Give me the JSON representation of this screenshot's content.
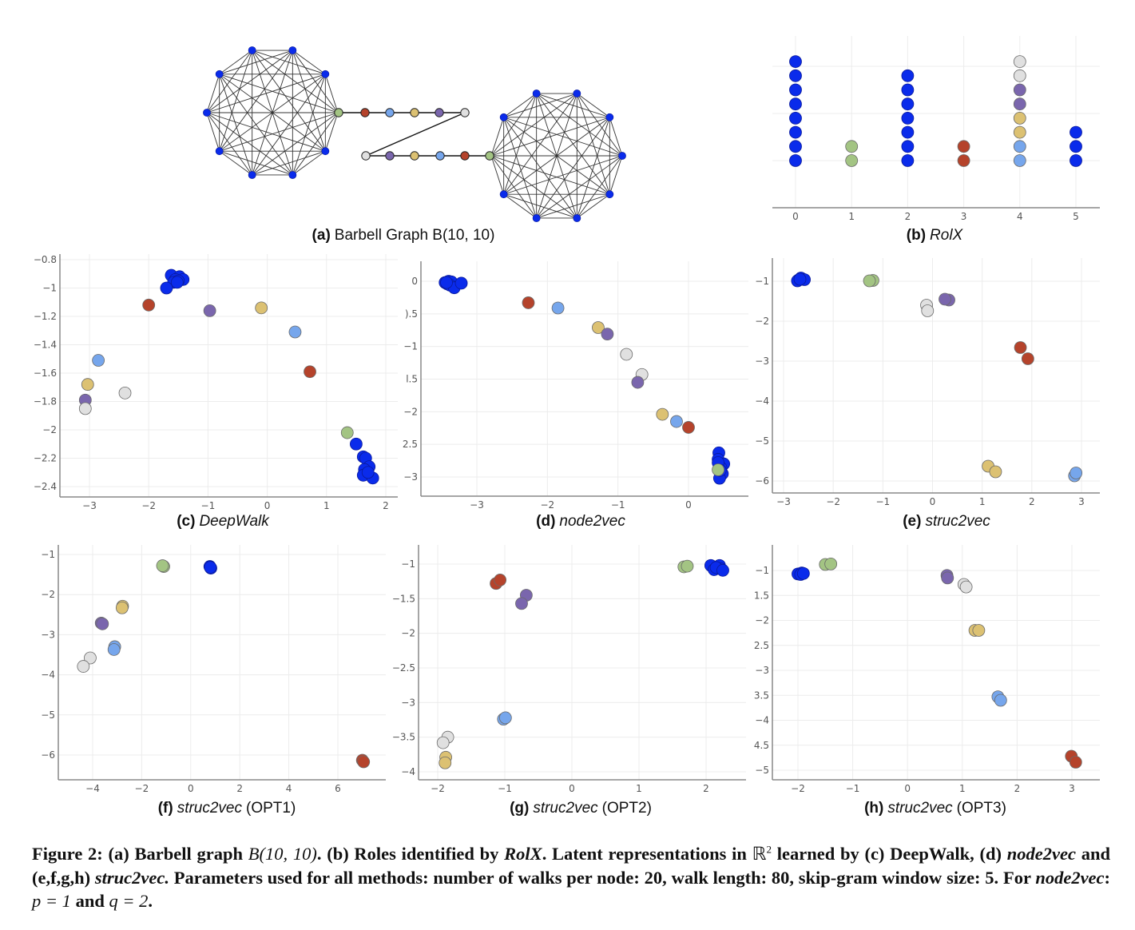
{
  "colors": {
    "blue": "#0A2BEB",
    "green": "#A3C483",
    "red": "#B5432B",
    "lightblue": "#76A6EC",
    "yellow": "#DCC172",
    "purple": "#7A66AD",
    "gray": "#E0E0E0"
  },
  "panel_a": {
    "label_letter": "(a)",
    "label_text": "Barbell Graph B(10, 10)",
    "clique_size": 10,
    "path_left_to_right_top": [
      "green",
      "red",
      "lightblue",
      "yellow",
      "purple",
      "gray"
    ],
    "path_left_to_right_bottom": [
      "gray",
      "purple",
      "yellow",
      "lightblue",
      "red",
      "green"
    ]
  },
  "caption": {
    "figure_label": "Figure 2:",
    "part1": "(a) Barbell graph",
    "math1": "B(10, 10)",
    "part2": ".  (b) Roles identified by",
    "rolx": "RolX",
    "part3": ". Latent representations in",
    "reals": "ℝ",
    "sup": "2",
    "part4": "learned by (c) DeepWalk, (d)",
    "n2v1": "node2vec",
    "part5": "and (e,f,g,h)",
    "s2v": "struc2vec.",
    "part6": "Parameters used for all methods: number of walks per node: 20, walk length: 80, skip-gram window size: 5. For",
    "n2v2": "node2vec",
    "part7": ":",
    "p_expr": "p = 1",
    "and": "and",
    "q_expr": "q = 2",
    "end": "."
  },
  "chart_data": [
    {
      "id": "b",
      "type": "scatter",
      "title_letter": "(b)",
      "title": "RolX",
      "subtype": "stacked-dot",
      "x_ticks": [
        "0",
        "1",
        "2",
        "3",
        "4",
        "5"
      ],
      "stacks": [
        {
          "x": 0,
          "colors": [
            "blue",
            "blue",
            "blue",
            "blue",
            "blue",
            "blue",
            "blue",
            "blue"
          ]
        },
        {
          "x": 1,
          "colors": [
            "green",
            "green"
          ]
        },
        {
          "x": 2,
          "colors": [
            "blue",
            "blue",
            "blue",
            "blue",
            "blue",
            "blue",
            "blue"
          ]
        },
        {
          "x": 3,
          "colors": [
            "red",
            "red"
          ]
        },
        {
          "x": 4,
          "colors": [
            "lightblue",
            "lightblue",
            "yellow",
            "yellow",
            "purple",
            "purple",
            "gray",
            "gray"
          ]
        },
        {
          "x": 5,
          "colors": [
            "blue",
            "blue",
            "blue"
          ]
        }
      ],
      "grid": true
    },
    {
      "id": "c",
      "type": "scatter",
      "title_letter": "(c)",
      "title": "DeepWalk",
      "title_suffix": "",
      "xlim": [
        -3.5,
        2.2
      ],
      "ylim": [
        -2.47,
        -0.8
      ],
      "x_ticks": [
        -3,
        -2,
        -1,
        0,
        1,
        2
      ],
      "y_ticks": [
        -0.8,
        -1,
        -1.2,
        -1.4,
        -1.6,
        -1.8,
        -2,
        -2.2,
        -2.4
      ],
      "y_tick_labels": [
        "−0.8",
        "−1",
        "−1.2",
        "−1.4",
        "−1.6",
        "−1.8",
        "−2",
        "−2.2",
        "−2.4"
      ],
      "x_tick_labels": [
        "−3",
        "−2",
        "−1",
        "0",
        "1",
        "2"
      ],
      "grid": true,
      "points": [
        {
          "x": -1.62,
          "y": -0.91,
          "c": "blue"
        },
        {
          "x": -1.48,
          "y": -0.92,
          "c": "blue"
        },
        {
          "x": -1.55,
          "y": -0.94,
          "c": "blue"
        },
        {
          "x": -1.42,
          "y": -0.94,
          "c": "blue"
        },
        {
          "x": -1.58,
          "y": -0.96,
          "c": "blue"
        },
        {
          "x": -1.5,
          "y": -0.95,
          "c": "blue"
        },
        {
          "x": -1.52,
          "y": -0.96,
          "c": "blue"
        },
        {
          "x": -1.7,
          "y": -1.0,
          "c": "blue"
        },
        {
          "x": -2.0,
          "y": -1.12,
          "c": "red"
        },
        {
          "x": -0.97,
          "y": -1.16,
          "c": "purple"
        },
        {
          "x": -0.1,
          "y": -1.14,
          "c": "yellow"
        },
        {
          "x": 0.47,
          "y": -1.31,
          "c": "lightblue"
        },
        {
          "x": 0.72,
          "y": -1.59,
          "c": "red"
        },
        {
          "x": -2.85,
          "y": -1.51,
          "c": "lightblue"
        },
        {
          "x": -3.03,
          "y": -1.68,
          "c": "yellow"
        },
        {
          "x": -2.4,
          "y": -1.74,
          "c": "gray"
        },
        {
          "x": -3.07,
          "y": -1.79,
          "c": "purple"
        },
        {
          "x": -3.07,
          "y": -1.85,
          "c": "gray"
        },
        {
          "x": 1.35,
          "y": -2.02,
          "c": "green"
        },
        {
          "x": 1.5,
          "y": -2.1,
          "c": "blue"
        },
        {
          "x": 1.62,
          "y": -2.19,
          "c": "blue"
        },
        {
          "x": 1.66,
          "y": -2.2,
          "c": "blue"
        },
        {
          "x": 1.72,
          "y": -2.26,
          "c": "blue"
        },
        {
          "x": 1.64,
          "y": -2.28,
          "c": "blue"
        },
        {
          "x": 1.68,
          "y": -2.31,
          "c": "blue"
        },
        {
          "x": 1.62,
          "y": -2.32,
          "c": "blue"
        },
        {
          "x": 1.78,
          "y": -2.34,
          "c": "blue"
        },
        {
          "x": 1.7,
          "y": -2.3,
          "c": "blue"
        }
      ]
    },
    {
      "id": "d",
      "type": "scatter",
      "title_letter": "(d)",
      "title": "node2vec",
      "title_suffix": "",
      "xlim": [
        -3.8,
        0.85
      ],
      "ylim": [
        -3.3,
        0.3
      ],
      "x_ticks": [
        -3,
        -2,
        -1,
        0
      ],
      "x_tick_labels": [
        "−3",
        "−2",
        "−1",
        "0"
      ],
      "y_ticks": [
        0,
        -0.5,
        -1,
        -1.5,
        -2,
        -2.5,
        -3
      ],
      "y_tick_labels": [
        "0",
        ").5",
        "−1",
        "l.5",
        "−2",
        "2.5",
        "−3"
      ],
      "grid": true,
      "points": [
        {
          "x": -3.45,
          "y": -0.02,
          "c": "blue"
        },
        {
          "x": -3.4,
          "y": 0.0,
          "c": "blue"
        },
        {
          "x": -3.42,
          "y": -0.04,
          "c": "blue"
        },
        {
          "x": -3.36,
          "y": -0.01,
          "c": "blue"
        },
        {
          "x": -3.38,
          "y": -0.06,
          "c": "blue"
        },
        {
          "x": -3.32,
          "y": -0.1,
          "c": "blue"
        },
        {
          "x": -3.22,
          "y": -0.03,
          "c": "blue"
        },
        {
          "x": -3.43,
          "y": -0.02,
          "c": "blue"
        },
        {
          "x": -2.27,
          "y": -0.33,
          "c": "red"
        },
        {
          "x": -1.85,
          "y": -0.41,
          "c": "lightblue"
        },
        {
          "x": -1.28,
          "y": -0.71,
          "c": "yellow"
        },
        {
          "x": -1.15,
          "y": -0.81,
          "c": "purple"
        },
        {
          "x": -0.88,
          "y": -1.12,
          "c": "gray"
        },
        {
          "x": -0.66,
          "y": -1.43,
          "c": "gray"
        },
        {
          "x": -0.72,
          "y": -1.55,
          "c": "purple"
        },
        {
          "x": -0.37,
          "y": -2.04,
          "c": "yellow"
        },
        {
          "x": -0.17,
          "y": -2.15,
          "c": "lightblue"
        },
        {
          "x": 0.0,
          "y": -2.24,
          "c": "red"
        },
        {
          "x": 0.43,
          "y": -2.63,
          "c": "blue"
        },
        {
          "x": 0.42,
          "y": -2.73,
          "c": "blue"
        },
        {
          "x": 0.5,
          "y": -2.8,
          "c": "blue"
        },
        {
          "x": 0.46,
          "y": -2.86,
          "c": "blue"
        },
        {
          "x": 0.48,
          "y": -2.95,
          "c": "blue"
        },
        {
          "x": 0.44,
          "y": -3.02,
          "c": "blue"
        },
        {
          "x": 0.42,
          "y": -2.78,
          "c": "blue"
        },
        {
          "x": 0.45,
          "y": -2.9,
          "c": "blue"
        },
        {
          "x": 0.42,
          "y": -2.89,
          "c": "green"
        }
      ]
    },
    {
      "id": "e",
      "type": "scatter",
      "title_letter": "(e)",
      "title": "struc2vec",
      "title_suffix": "",
      "xlim": [
        -3.22,
        3.35
      ],
      "ylim": [
        -6.3,
        -0.45
      ],
      "x_ticks": [
        -3,
        -2,
        -1,
        0,
        1,
        2,
        3
      ],
      "x_tick_labels": [
        "−3",
        "−2",
        "−1",
        "0",
        "1",
        "2",
        "3"
      ],
      "y_ticks": [
        -1,
        -2,
        -3,
        -4,
        -5,
        -6
      ],
      "y_tick_labels": [
        "−1",
        "−2",
        "−3",
        "−4",
        "−5",
        "−6"
      ],
      "grid": true,
      "points": [
        {
          "x": -2.7,
          "y": -0.97,
          "c": "blue"
        },
        {
          "x": -2.65,
          "y": -0.92,
          "c": "blue"
        },
        {
          "x": -2.58,
          "y": -0.96,
          "c": "blue"
        },
        {
          "x": -2.72,
          "y": -0.99,
          "c": "blue"
        },
        {
          "x": -2.67,
          "y": -0.95,
          "c": "blue"
        },
        {
          "x": -1.2,
          "y": -0.98,
          "c": "green"
        },
        {
          "x": -1.27,
          "y": -0.99,
          "c": "green"
        },
        {
          "x": -0.12,
          "y": -1.6,
          "c": "gray"
        },
        {
          "x": -0.1,
          "y": -1.74,
          "c": "gray"
        },
        {
          "x": 0.33,
          "y": -1.47,
          "c": "purple"
        },
        {
          "x": 0.25,
          "y": -1.45,
          "c": "purple"
        },
        {
          "x": 1.77,
          "y": -2.66,
          "c": "red"
        },
        {
          "x": 1.92,
          "y": -2.94,
          "c": "red"
        },
        {
          "x": 1.12,
          "y": -5.63,
          "c": "yellow"
        },
        {
          "x": 1.27,
          "y": -5.77,
          "c": "yellow"
        },
        {
          "x": 2.86,
          "y": -5.87,
          "c": "lightblue"
        },
        {
          "x": 2.89,
          "y": -5.8,
          "c": "lightblue"
        }
      ]
    },
    {
      "id": "f",
      "type": "scatter",
      "title_letter": "(f)",
      "title": "struc2vec",
      "title_suffix": "(OPT1)",
      "xlim": [
        -5.4,
        7.9
      ],
      "ylim": [
        -6.64,
        -0.8
      ],
      "x_ticks": [
        -4,
        -2,
        0,
        2,
        4,
        6
      ],
      "x_tick_labels": [
        "−4",
        "−2",
        "0",
        "2",
        "4",
        "6"
      ],
      "y_ticks": [
        -1,
        -2,
        -3,
        -4,
        -5,
        -6
      ],
      "y_tick_labels": [
        "−1",
        "−2",
        "−3",
        "−4",
        "−5",
        "−6"
      ],
      "grid": true,
      "points": [
        {
          "x": -1.1,
          "y": -1.3,
          "c": "green"
        },
        {
          "x": -1.15,
          "y": -1.28,
          "c": "green"
        },
        {
          "x": 0.78,
          "y": -1.3,
          "c": "blue"
        },
        {
          "x": 0.82,
          "y": -1.34,
          "c": "blue"
        },
        {
          "x": 0.8,
          "y": -1.32,
          "c": "blue"
        },
        {
          "x": -2.78,
          "y": -2.29,
          "c": "yellow"
        },
        {
          "x": -2.8,
          "y": -2.33,
          "c": "yellow"
        },
        {
          "x": -3.65,
          "y": -2.71,
          "c": "purple"
        },
        {
          "x": -3.6,
          "y": -2.73,
          "c": "purple"
        },
        {
          "x": -3.1,
          "y": -3.3,
          "c": "lightblue"
        },
        {
          "x": -3.13,
          "y": -3.37,
          "c": "lightblue"
        },
        {
          "x": -4.1,
          "y": -3.58,
          "c": "gray"
        },
        {
          "x": -4.38,
          "y": -3.79,
          "c": "gray"
        },
        {
          "x": 7.0,
          "y": -6.13,
          "c": "red"
        },
        {
          "x": 7.05,
          "y": -6.17,
          "c": "red"
        }
      ]
    },
    {
      "id": "g",
      "type": "scatter",
      "title_letter": "(g)",
      "title": "struc2vec",
      "title_suffix": "(OPT2)",
      "xlim": [
        -2.3,
        2.6
      ],
      "ylim": [
        -4.13,
        -0.78
      ],
      "x_ticks": [
        -2,
        -1,
        0,
        1,
        2
      ],
      "x_tick_labels": [
        "−2",
        "−1",
        "0",
        "1",
        "2"
      ],
      "y_ticks": [
        -1,
        -1.5,
        -2,
        -2.5,
        -3,
        -3.5,
        -4
      ],
      "y_tick_labels": [
        "−1",
        "−1.5",
        "−2",
        "−2.5",
        "−3",
        "−3.5",
        "−4"
      ],
      "grid": true,
      "points": [
        {
          "x": -1.13,
          "y": -1.28,
          "c": "red"
        },
        {
          "x": -1.07,
          "y": -1.23,
          "c": "red"
        },
        {
          "x": -0.68,
          "y": -1.45,
          "c": "purple"
        },
        {
          "x": -0.75,
          "y": -1.57,
          "c": "purple"
        },
        {
          "x": 1.67,
          "y": -1.04,
          "c": "green"
        },
        {
          "x": 1.72,
          "y": -1.03,
          "c": "green"
        },
        {
          "x": 2.07,
          "y": -1.02,
          "c": "blue"
        },
        {
          "x": 2.2,
          "y": -1.02,
          "c": "blue"
        },
        {
          "x": 2.12,
          "y": -1.08,
          "c": "blue"
        },
        {
          "x": 2.22,
          "y": -1.07,
          "c": "blue"
        },
        {
          "x": 2.15,
          "y": -1.05,
          "c": "blue"
        },
        {
          "x": 2.25,
          "y": -1.09,
          "c": "blue"
        },
        {
          "x": -1.02,
          "y": -3.24,
          "c": "lightblue"
        },
        {
          "x": -0.99,
          "y": -3.22,
          "c": "lightblue"
        },
        {
          "x": -1.85,
          "y": -3.5,
          "c": "gray"
        },
        {
          "x": -1.92,
          "y": -3.58,
          "c": "gray"
        },
        {
          "x": -1.88,
          "y": -3.79,
          "c": "yellow"
        },
        {
          "x": -1.89,
          "y": -3.87,
          "c": "yellow"
        }
      ]
    },
    {
      "id": "h",
      "type": "scatter",
      "title_letter": "(h)",
      "title": "struc2vec",
      "title_suffix": "(OPT3)",
      "xlim": [
        -2.47,
        3.5
      ],
      "ylim": [
        -5.2,
        -0.55
      ],
      "x_ticks": [
        -2,
        -1,
        0,
        1,
        2,
        3
      ],
      "x_tick_labels": [
        "−2",
        "−1",
        "0",
        "1",
        "2",
        "3"
      ],
      "y_ticks": [
        -1,
        -1.5,
        -2,
        -2.5,
        -3,
        -3.5,
        -4,
        -4.5,
        -5
      ],
      "y_tick_labels": [
        "−1",
        "1.5",
        "−2",
        "2.5",
        "−3",
        "3.5",
        "−4",
        "4.5",
        "−5"
      ],
      "grid": true,
      "points": [
        {
          "x": -2.0,
          "y": -1.07,
          "c": "blue"
        },
        {
          "x": -1.93,
          "y": -1.05,
          "c": "blue"
        },
        {
          "x": -1.95,
          "y": -1.08,
          "c": "blue"
        },
        {
          "x": -1.9,
          "y": -1.06,
          "c": "blue"
        },
        {
          "x": -1.5,
          "y": -0.88,
          "c": "green"
        },
        {
          "x": -1.4,
          "y": -0.87,
          "c": "green"
        },
        {
          "x": 0.72,
          "y": -1.1,
          "c": "purple"
        },
        {
          "x": 0.73,
          "y": -1.15,
          "c": "purple"
        },
        {
          "x": 1.03,
          "y": -1.28,
          "c": "gray"
        },
        {
          "x": 1.07,
          "y": -1.33,
          "c": "gray"
        },
        {
          "x": 1.23,
          "y": -2.2,
          "c": "yellow"
        },
        {
          "x": 1.3,
          "y": -2.2,
          "c": "yellow"
        },
        {
          "x": 1.65,
          "y": -3.53,
          "c": "lightblue"
        },
        {
          "x": 1.7,
          "y": -3.6,
          "c": "lightblue"
        },
        {
          "x": 2.99,
          "y": -4.72,
          "c": "red"
        },
        {
          "x": 3.07,
          "y": -4.84,
          "c": "red"
        }
      ]
    }
  ]
}
